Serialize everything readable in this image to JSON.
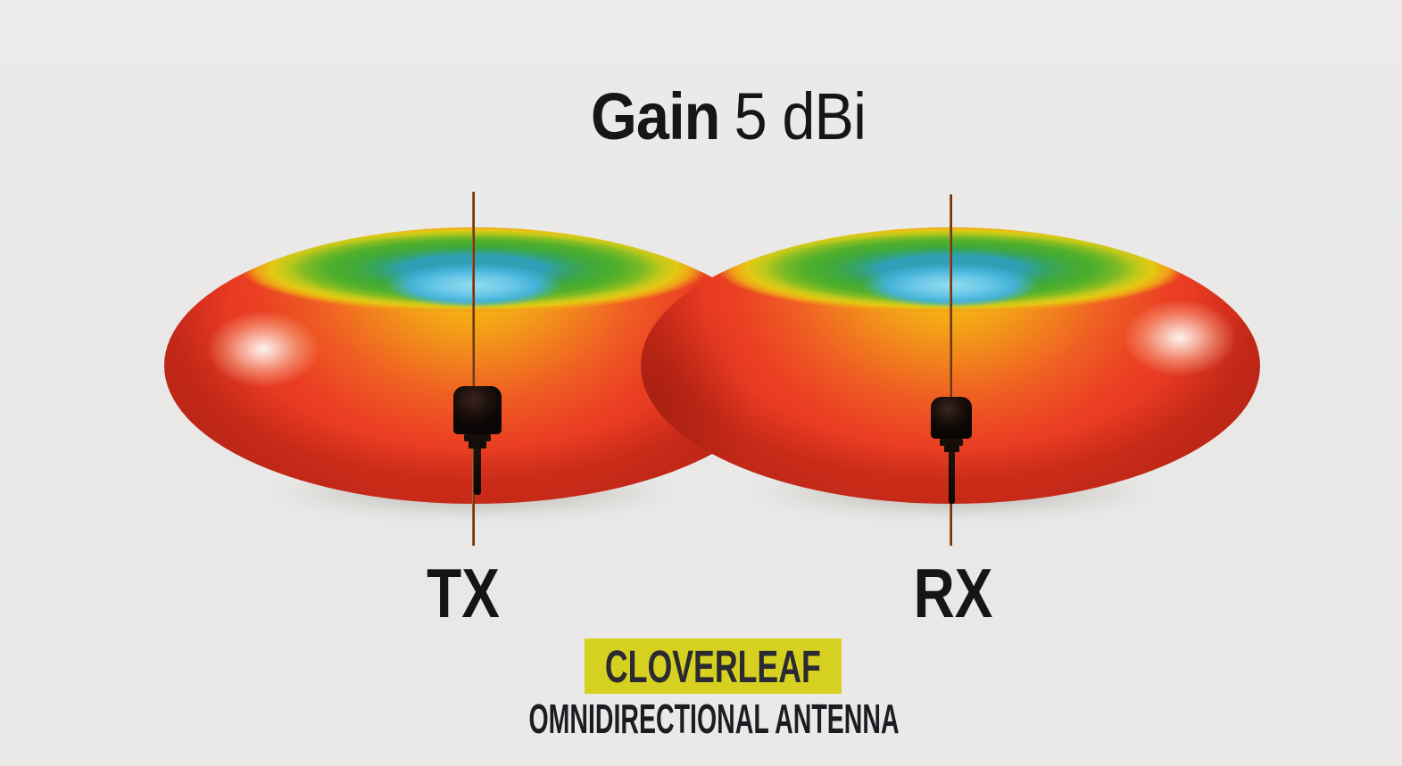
{
  "title": {
    "prefix": "Gain",
    "value": "5 dBi"
  },
  "diagram": {
    "antennas": [
      {
        "label": "TX"
      },
      {
        "label": "RX"
      }
    ],
    "pattern_colormap": [
      "#8ed9ee",
      "#63c4e6",
      "#44b2d8",
      "#42aa36",
      "#83bc23",
      "#bfc81b",
      "#e4c814",
      "#f0a117",
      "#ef5f23",
      "#e33621"
    ],
    "axis_line_color": "#7b4019",
    "antenna_color": "#140d0b"
  },
  "banner": {
    "label": "CLOVERLEAF",
    "background_color": "#d6d021",
    "text_color": "#2b2a33"
  },
  "subtitle": {
    "label": "OMNIDIRECTIONAL ANTENNA"
  },
  "colors": {
    "background": "#eae9e7",
    "title_text": "#161616"
  }
}
